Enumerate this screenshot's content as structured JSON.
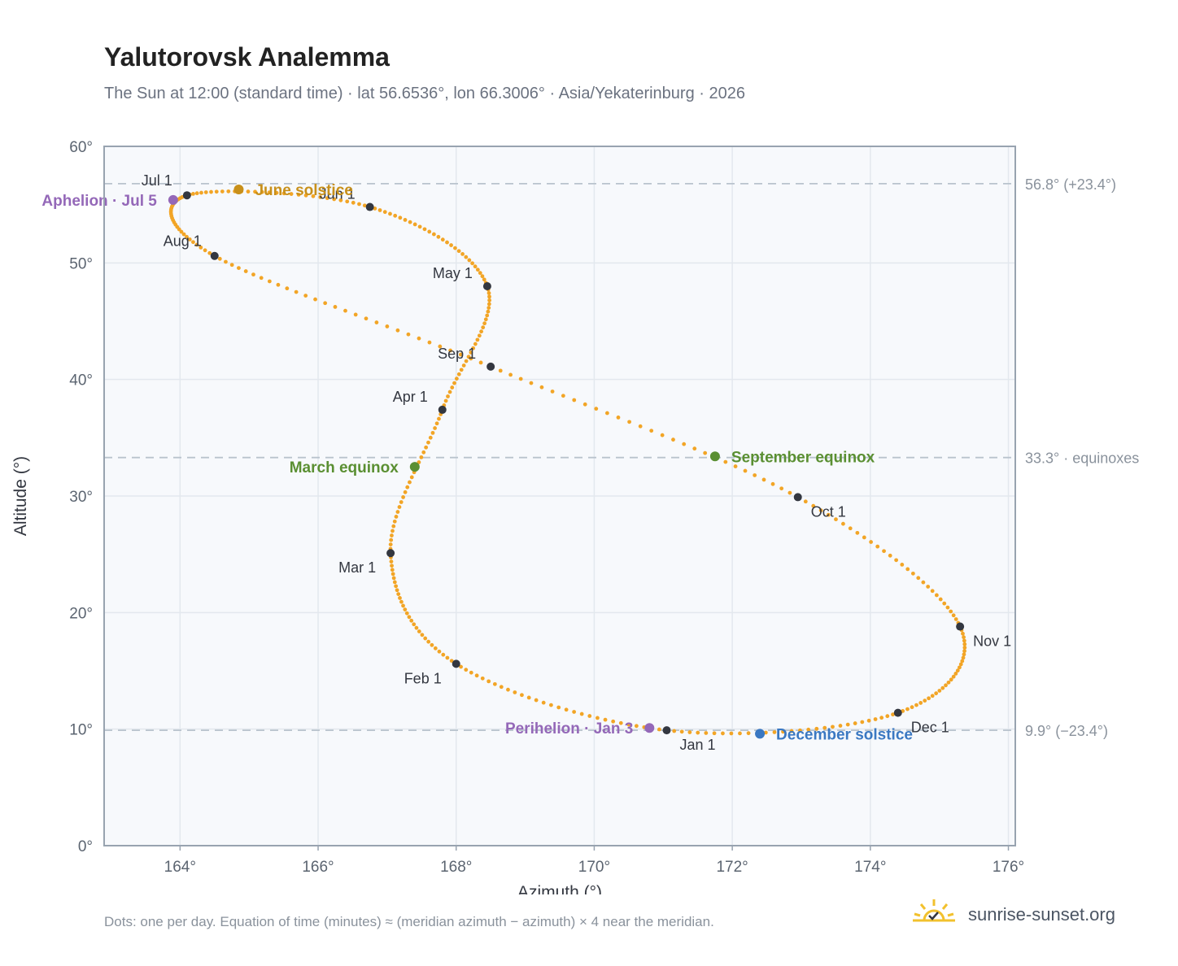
{
  "title": "Yalutorovsk Analemma",
  "subtitle": "The Sun at 12:00 (standard time) · lat 56.6536°, lon 66.3006° · Asia/Yekaterinburg · 2026",
  "footnote": "Dots: one per day. Equation of time (minutes) ≈ (meridian azimuth − azimuth) × 4 near the meridian.",
  "brand": {
    "text": "sunrise-sunset.org",
    "icon": "sun-check-icon"
  },
  "colors": {
    "curve": "#f2a526",
    "month": "#333740",
    "solstice_june": "#c8901a",
    "equinox": "#5a8f32",
    "solstice_december": "#3a78c2",
    "apsis": "#9468b8",
    "grid": "#e3e8ee",
    "plot_bg": "#f7f9fc",
    "frame": "#98a3b0",
    "ref_line": "#b9c3cd"
  },
  "chart_data": {
    "type": "scatter",
    "xlabel": "Azimuth (°)",
    "ylabel": "Altitude (°)",
    "xlim": [
      162.9,
      176.1
    ],
    "ylim": [
      0,
      60
    ],
    "xticks": [
      164,
      166,
      168,
      170,
      172,
      174,
      176
    ],
    "yticks": [
      0,
      10,
      20,
      30,
      40,
      50,
      60
    ],
    "xtick_labels": [
      "164°",
      "166°",
      "168°",
      "170°",
      "172°",
      "174°",
      "176°"
    ],
    "ytick_labels": [
      "0°",
      "10°",
      "20°",
      "30°",
      "40°",
      "50°",
      "60°"
    ],
    "grid": true,
    "reference_lines": [
      {
        "y": 56.8,
        "label": "56.8° (+23.4°)"
      },
      {
        "y": 33.3,
        "label": "33.3° · equinoxes"
      },
      {
        "y": 9.9,
        "label": "9.9° (−23.4°)"
      }
    ],
    "months": [
      {
        "label": "Jan 1",
        "x": 171.05,
        "y": 9.9
      },
      {
        "label": "Feb 1",
        "x": 168.0,
        "y": 15.6
      },
      {
        "label": "Mar 1",
        "x": 167.05,
        "y": 25.1
      },
      {
        "label": "Apr 1",
        "x": 167.8,
        "y": 37.4
      },
      {
        "label": "May 1",
        "x": 168.45,
        "y": 48.0
      },
      {
        "label": "Jun 1",
        "x": 166.75,
        "y": 54.8
      },
      {
        "label": "Jul 1",
        "x": 164.1,
        "y": 55.8
      },
      {
        "label": "Aug 1",
        "x": 164.5,
        "y": 50.6
      },
      {
        "label": "Sep 1",
        "x": 168.5,
        "y": 41.1
      },
      {
        "label": "Oct 1",
        "x": 172.95,
        "y": 29.9
      },
      {
        "label": "Nov 1",
        "x": 175.3,
        "y": 18.8
      },
      {
        "label": "Dec 1",
        "x": 174.4,
        "y": 11.4
      }
    ],
    "events": [
      {
        "label": "June solstice",
        "x": 164.85,
        "y": 56.3,
        "kind": "solstice_june"
      },
      {
        "label": "March equinox",
        "x": 167.4,
        "y": 32.5,
        "kind": "equinox"
      },
      {
        "label": "September equinox",
        "x": 171.75,
        "y": 33.4,
        "kind": "equinox"
      },
      {
        "label": "December solstice",
        "x": 172.4,
        "y": 9.6,
        "kind": "solstice_december"
      },
      {
        "label": "Aphelion · Jul 5",
        "x": 163.9,
        "y": 55.4,
        "kind": "apsis"
      },
      {
        "label": "Perihelion · Jan 3",
        "x": 170.8,
        "y": 10.1,
        "kind": "apsis"
      }
    ],
    "daily_count": 365
  }
}
